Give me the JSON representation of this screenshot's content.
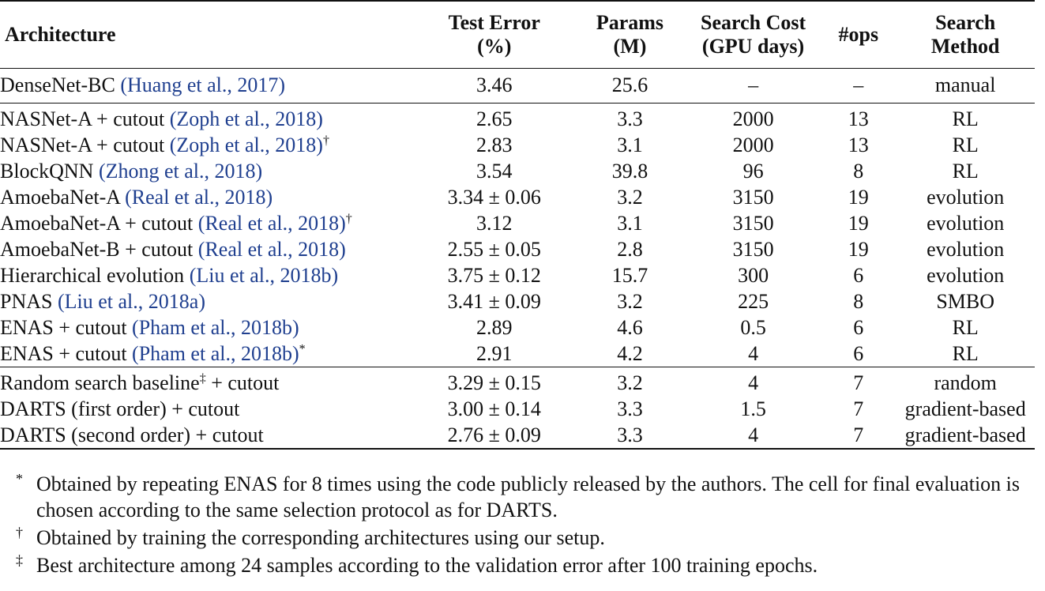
{
  "table": {
    "headers": {
      "architecture": "Architecture",
      "test_error_l1": "Test Error",
      "test_error_l2": "(%)",
      "params_l1": "Params",
      "params_l2": "(M)",
      "cost_l1": "Search Cost",
      "cost_l2": "(GPU days)",
      "ops": "#ops",
      "method_l1": "Search",
      "method_l2": "Method"
    },
    "rows": [
      {
        "name": "DenseNet-BC ",
        "cite": "(Huang et al., 2017)",
        "mark": "",
        "suffix": "",
        "error": "3.46",
        "params": "25.6",
        "cost": "–",
        "ops": "–",
        "method": "manual"
      },
      {
        "name": "NASNet-A + cutout ",
        "cite": "(Zoph et al., 2018)",
        "mark": "",
        "suffix": "",
        "error": "2.65",
        "params": "3.3",
        "cost": "2000",
        "ops": "13",
        "method": "RL"
      },
      {
        "name": "NASNet-A + cutout ",
        "cite": "(Zoph et al., 2018)",
        "mark": "†",
        "suffix": "",
        "error": "2.83",
        "params": "3.1",
        "cost": "2000",
        "ops": "13",
        "method": "RL"
      },
      {
        "name": "BlockQNN ",
        "cite": "(Zhong et al., 2018)",
        "mark": "",
        "suffix": "",
        "error": "3.54",
        "params": "39.8",
        "cost": "96",
        "ops": "8",
        "method": "RL"
      },
      {
        "name": "AmoebaNet-A ",
        "cite": "(Real et al., 2018)",
        "mark": "",
        "suffix": "",
        "error": "3.34 ± 0.06",
        "params": "3.2",
        "cost": "3150",
        "ops": "19",
        "method": "evolution"
      },
      {
        "name": "AmoebaNet-A + cutout ",
        "cite": "(Real et al., 2018)",
        "mark": "†",
        "suffix": "",
        "error": "3.12",
        "params": "3.1",
        "cost": "3150",
        "ops": "19",
        "method": "evolution"
      },
      {
        "name": "AmoebaNet-B + cutout ",
        "cite": "(Real et al., 2018)",
        "mark": "",
        "suffix": "",
        "error": "2.55 ± 0.05",
        "params": "2.8",
        "cost": "3150",
        "ops": "19",
        "method": "evolution"
      },
      {
        "name": "Hierarchical evolution ",
        "cite": "(Liu et al., 2018b)",
        "mark": "",
        "suffix": "",
        "error": "3.75 ± 0.12",
        "params": "15.7",
        "cost": "300",
        "ops": "6",
        "method": "evolution"
      },
      {
        "name": "PNAS ",
        "cite": "(Liu et al., 2018a)",
        "mark": "",
        "suffix": "",
        "error": "3.41 ± 0.09",
        "params": "3.2",
        "cost": "225",
        "ops": "8",
        "method": "SMBO"
      },
      {
        "name": "ENAS + cutout ",
        "cite": "(Pham et al., 2018b)",
        "mark": "",
        "suffix": "",
        "error": "2.89",
        "params": "4.6",
        "cost": "0.5",
        "ops": "6",
        "method": "RL"
      },
      {
        "name": "ENAS + cutout ",
        "cite": "(Pham et al., 2018b)",
        "mark": "*",
        "suffix": "",
        "error": "2.91",
        "params": "4.2",
        "cost": "4",
        "ops": "6",
        "method": "RL"
      },
      {
        "name": "Random search baseline",
        "cite": "",
        "mark": "‡",
        "suffix": " + cutout",
        "error": "3.29 ± 0.15",
        "params": "3.2",
        "cost": "4",
        "ops": "7",
        "method": "random"
      },
      {
        "name": "DARTS (first order) + cutout",
        "cite": "",
        "mark": "",
        "suffix": "",
        "error": "3.00 ± 0.14",
        "params": "3.3",
        "cost": "1.5",
        "ops": "7",
        "method": "gradient-based"
      },
      {
        "name": "DARTS (second order) + cutout",
        "cite": "",
        "mark": "",
        "suffix": "",
        "error": "2.76 ± 0.09",
        "params": "3.3",
        "cost": "4",
        "ops": "7",
        "method": "gradient-based"
      }
    ]
  },
  "footnotes": [
    {
      "symbol": "*",
      "text": "Obtained by repeating ENAS for 8 times using the code publicly released by the authors. The cell for final evaluation is chosen according to the same selection protocol as for DARTS."
    },
    {
      "symbol": "†",
      "text": "Obtained by training the corresponding architectures using our setup."
    },
    {
      "symbol": "‡",
      "text": "Best architecture among 24 samples according to the validation error after 100 training epochs."
    }
  ],
  "colors": {
    "citation": "#1f3f8f",
    "text": "#111111"
  }
}
